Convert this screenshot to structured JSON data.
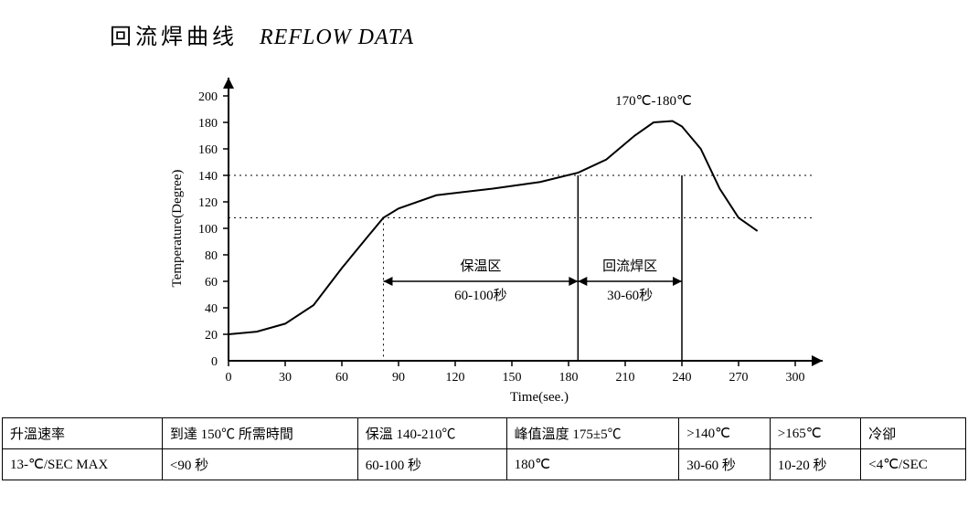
{
  "title_cn": "回流焊曲线",
  "title_en": "REFLOW DATA",
  "chart": {
    "type": "line",
    "background_color": "#ffffff",
    "stroke": "#000000",
    "line_width": 2,
    "xlabel": "Time(see.)",
    "ylabel": "Temperature(Degree)",
    "label_fontsize": 15,
    "tick_fontsize": 14,
    "xlim": [
      0,
      300
    ],
    "xtick_step": 30,
    "ylim": [
      0,
      200
    ],
    "ytick_step": 20,
    "xticks": [
      0,
      30,
      60,
      90,
      120,
      150,
      180,
      210,
      240,
      270,
      300
    ],
    "yticks": [
      0,
      20,
      40,
      60,
      80,
      100,
      120,
      140,
      160,
      180,
      200
    ],
    "points": [
      [
        0,
        20
      ],
      [
        15,
        22
      ],
      [
        30,
        28
      ],
      [
        45,
        42
      ],
      [
        60,
        70
      ],
      [
        75,
        96
      ],
      [
        82,
        108
      ],
      [
        90,
        115
      ],
      [
        110,
        125
      ],
      [
        140,
        130
      ],
      [
        165,
        135
      ],
      [
        185,
        142
      ],
      [
        200,
        152
      ],
      [
        215,
        170
      ],
      [
        225,
        180
      ],
      [
        235,
        181
      ],
      [
        240,
        177
      ],
      [
        250,
        160
      ],
      [
        260,
        130
      ],
      [
        270,
        108
      ],
      [
        280,
        98
      ]
    ],
    "peak_label": "170℃-180℃",
    "zone1": {
      "label1": "保温区",
      "label2": "60-100秒",
      "x_from": 82,
      "x_to": 185
    },
    "zone2": {
      "label1": "回流焊区",
      "label2": "30-60秒",
      "x_from": 185,
      "x_to": 240
    },
    "dotted_y_lines": [
      108,
      140
    ],
    "dotted_x_lines": [
      82,
      185,
      240
    ]
  },
  "table": {
    "columns": [
      "升溫速率",
      "到達 150℃ 所需時間",
      "保溫 140-210℃",
      "峰值溫度 175±5℃",
      ">140℃",
      ">165℃",
      "冷卻"
    ],
    "rows": [
      [
        "13-℃/SEC MAX",
        "<90 秒",
        "60-100 秒",
        "180℃",
        "30-60 秒",
        "10-20 秒",
        "<4℃/SEC"
      ]
    ]
  }
}
